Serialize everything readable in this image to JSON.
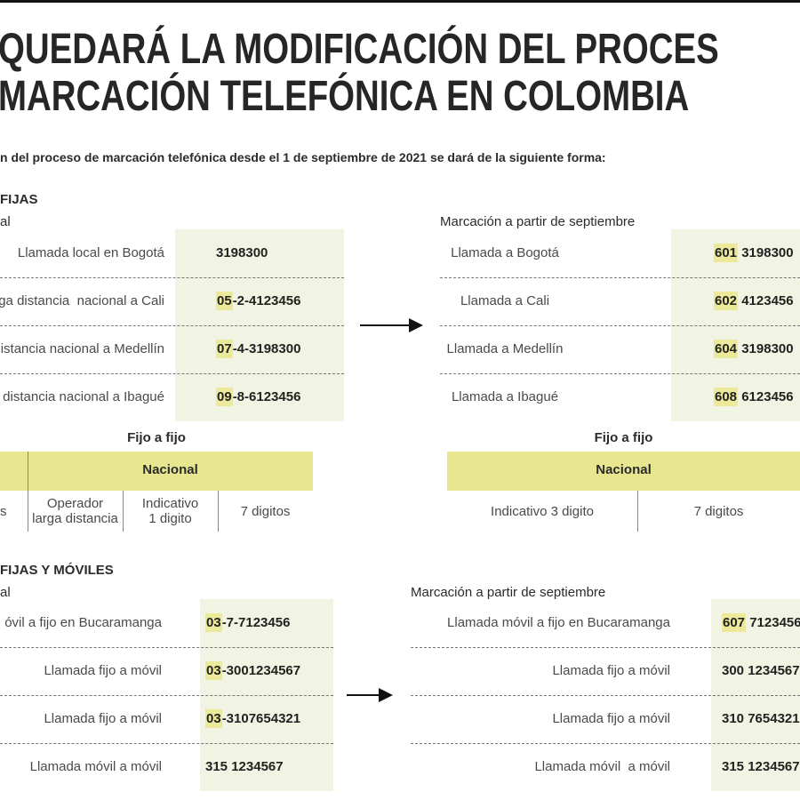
{
  "title_lines": [
    "QUEDARÁ LA MODIFICACIÓN DEL PROCES",
    "MARCACIÓN TELEFÓNICA EN COLOMBIA"
  ],
  "subtitle": "n del proceso de marcación telefónica desde el 1 de septiembre de 2021 se dará de la siguiente forma:",
  "section1": {
    "heading": "FIJAS",
    "current_label": "al",
    "new_label": "Marcación a partir de septiembre",
    "current_rows": [
      {
        "label": "Llamada local en Bogotá",
        "number": "3198300"
      },
      {
        "label": "rga distancia  nacional a Cali",
        "highlight": "05",
        "rest": "-2-4123456"
      },
      {
        "label": "distancia nacional a Medellín",
        "highlight": "07",
        "rest": "-4-3198300"
      },
      {
        "label": " distancia nacional a Ibagué",
        "highlight": "09",
        "rest": "-8-6123456"
      }
    ],
    "new_rows": [
      {
        "label": "Llamada a Bogotá",
        "highlight": "601",
        "rest": " 3198300"
      },
      {
        "label": "Llamada a Cali",
        "highlight": "602",
        "rest": " 4123456"
      },
      {
        "label": "Llamada a Medellín",
        "highlight": "604",
        "rest": " 3198300"
      },
      {
        "label": "Llamada a Ibagué",
        "highlight": "608",
        "rest": " 6123456"
      }
    ]
  },
  "fijo_a_fijo": {
    "left": {
      "heading": "Fijo a fijo",
      "band": "Nacional",
      "cells": [
        [
          "s"
        ],
        [
          "Operador",
          "larga distancia"
        ],
        [
          "Indicativo",
          "1 digito"
        ],
        [
          "7 digitos"
        ]
      ]
    },
    "right": {
      "heading": "Fijo a fijo",
      "band": "Nacional",
      "cells": [
        [
          "Indicativo 3 digito"
        ],
        [
          "7 digitos"
        ]
      ]
    }
  },
  "section2": {
    "heading": "FIJAS Y MÓVILES",
    "current_label": "al",
    "new_label": "Marcación a partir de septiembre",
    "current_rows": [
      {
        "label": "óvil a fijo en Bucaramanga",
        "highlight": "03",
        "rest": "-7-7123456"
      },
      {
        "label": "Llamada fijo a móvil",
        "highlight": "03",
        "rest": "-3001234567"
      },
      {
        "label": "Llamada fijo a móvil",
        "highlight": "03",
        "rest": "-3107654321"
      },
      {
        "label": "Llamada móvil a móvil",
        "number": "315 1234567"
      }
    ],
    "new_rows": [
      {
        "label": "Llamada móvil a fijo en Bucaramanga",
        "highlight": "607",
        "rest": " 7123456"
      },
      {
        "label": "Llamada fijo a móvil",
        "number": "300 1234567"
      },
      {
        "label": "Llamada fijo a móvil",
        "number": "310 7654321"
      },
      {
        "label": "Llamada móvil  a móvil",
        "number": "315 1234567"
      }
    ]
  }
}
